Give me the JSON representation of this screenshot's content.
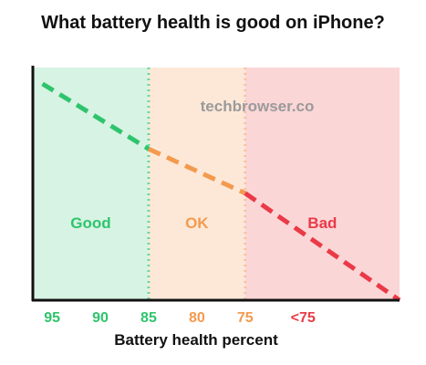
{
  "chart_data": {
    "type": "line",
    "title": "What battery health is good on iPhone?",
    "xlabel": "Battery health percent",
    "ylabel": "",
    "watermark": "techbrowser.co",
    "x_axis": {
      "reversed": true,
      "ticks": [
        {
          "label": "95",
          "value": 95,
          "color": "#2ec46d"
        },
        {
          "label": "90",
          "value": 90,
          "color": "#2ec46d"
        },
        {
          "label": "85",
          "value": 85,
          "color": "#2ec46d"
        },
        {
          "label": "80",
          "value": 80,
          "color": "#f39a4e"
        },
        {
          "label": "75",
          "value": 75,
          "color": "#f39a4e"
        },
        {
          "label": "<75",
          "value": 69,
          "color": "#ea3a47"
        }
      ],
      "range": [
        97,
        59
      ]
    },
    "y_range": [
      0,
      100
    ],
    "zones": [
      {
        "label": "Good",
        "from": 97,
        "to": 85,
        "fill": "#d7f3e3",
        "text_color": "#2ec46d",
        "line_color": "#2ec46d"
      },
      {
        "label": "OK",
        "from": 85,
        "to": 75,
        "fill": "#fde8d8",
        "text_color": "#f39a4e",
        "line_color": "#f39a4e"
      },
      {
        "label": "Bad",
        "from": 75,
        "to": 59,
        "fill": "#fbd6d7",
        "text_color": "#ea3a47",
        "line_color": "#ea3a47"
      }
    ],
    "boundaries": [
      {
        "x": 85,
        "color": "#6fd89b"
      },
      {
        "x": 75,
        "color": "#f7c3a0"
      }
    ],
    "series": [
      {
        "points": [
          [
            96,
            93
          ],
          [
            85,
            65
          ],
          [
            75,
            46
          ],
          [
            59,
            0
          ]
        ]
      }
    ],
    "grid": false,
    "legend": "none"
  }
}
